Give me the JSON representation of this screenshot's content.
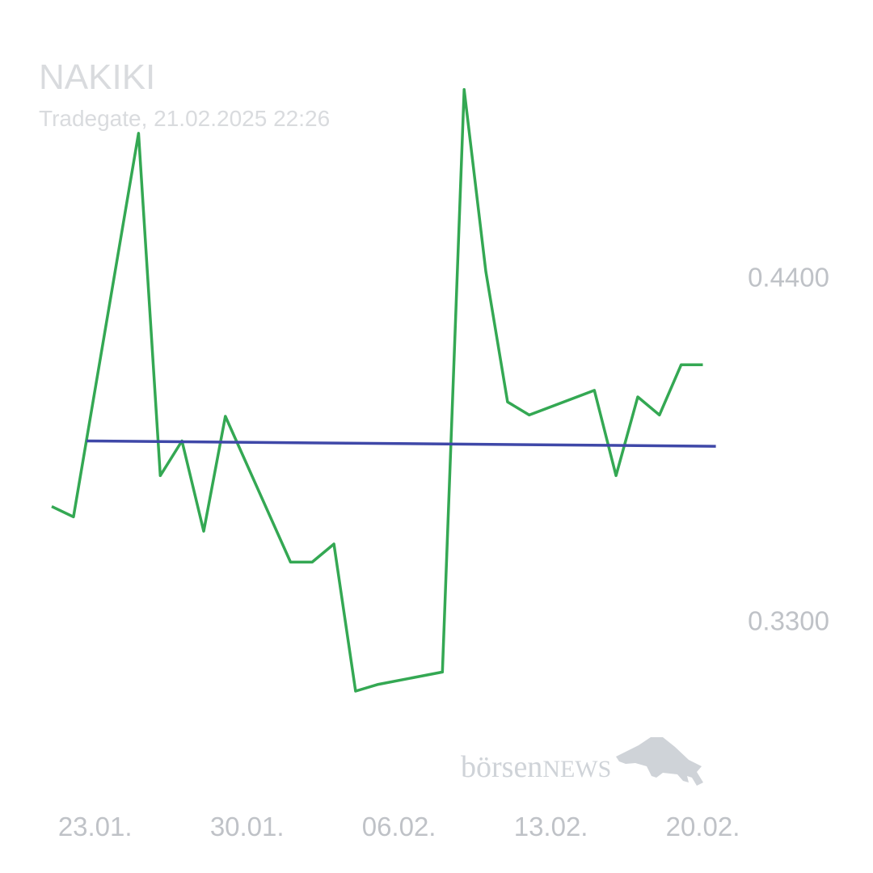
{
  "chart_data": {
    "type": "line",
    "title": "NAKIKI",
    "subtitle": "Tradegate, 21.02.2025 22:26",
    "y_ticks": [
      "0.4400",
      "0.3300"
    ],
    "y_tick_values": [
      0.44,
      0.33
    ],
    "x_ticks": [
      "23.01.",
      "30.01.",
      "06.02.",
      "13.02.",
      "20.02."
    ],
    "x_tick_days": [
      2,
      9,
      16,
      23,
      30
    ],
    "ylim": [
      0.2884,
      0.5027
    ],
    "xlim": [
      0,
      30.8
    ],
    "series": [
      {
        "color": "#34a853",
        "points": [
          {
            "day": 0,
            "value": 0.3664
          },
          {
            "day": 1,
            "value": 0.3631
          },
          {
            "day": 4,
            "value": 0.4859
          },
          {
            "day": 5,
            "value": 0.3763
          },
          {
            "day": 6,
            "value": 0.3874
          },
          {
            "day": 7,
            "value": 0.3585
          },
          {
            "day": 8,
            "value": 0.3953
          },
          {
            "day": 11,
            "value": 0.3486
          },
          {
            "day": 12,
            "value": 0.3486
          },
          {
            "day": 13,
            "value": 0.3544
          },
          {
            "day": 14,
            "value": 0.3073
          },
          {
            "day": 15,
            "value": 0.3094
          },
          {
            "day": 18,
            "value": 0.3134
          },
          {
            "day": 19,
            "value": 0.4999
          },
          {
            "day": 20,
            "value": 0.4417
          },
          {
            "day": 21,
            "value": 0.3999
          },
          {
            "day": 22,
            "value": 0.3957
          },
          {
            "day": 25,
            "value": 0.4036
          },
          {
            "day": 26,
            "value": 0.3763
          },
          {
            "day": 27,
            "value": 0.4015
          },
          {
            "day": 28,
            "value": 0.3957
          },
          {
            "day": 29,
            "value": 0.4118
          },
          {
            "day": 30,
            "value": 0.4118
          }
        ]
      },
      {
        "color": "#3f48a8",
        "points": [
          {
            "day": 1.6,
            "value": 0.3874
          },
          {
            "day": 30.6,
            "value": 0.3857
          }
        ]
      }
    ]
  },
  "watermark": {
    "text_a": "börsen",
    "text_b": "NEWS",
    "icon": "bull-icon"
  }
}
